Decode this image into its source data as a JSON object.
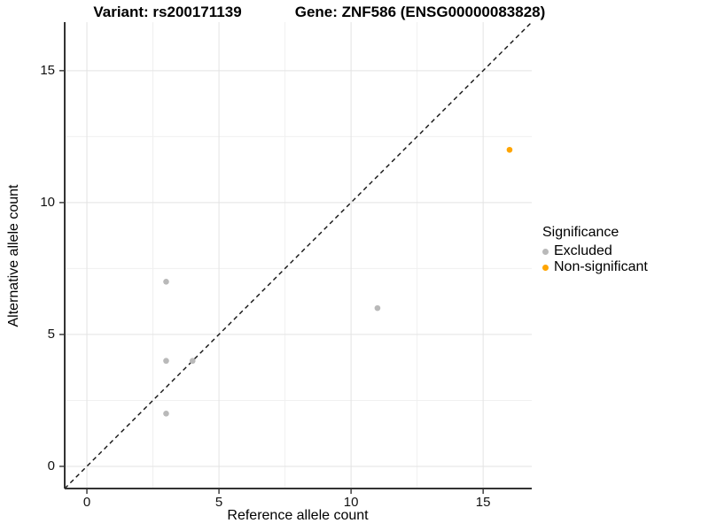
{
  "chart_data": {
    "type": "scatter",
    "title_left": "Variant: rs200171139",
    "title_right": "Gene: ZNF586 (ENSG00000083828)",
    "xlabel": "Reference allele count",
    "ylabel": "Alternative allele count",
    "xlim": [
      -0.84,
      16.84
    ],
    "ylim": [
      -0.84,
      16.84
    ],
    "x_ticks": [
      0,
      5,
      10,
      15
    ],
    "y_ticks": [
      0,
      5,
      10,
      15
    ],
    "x_minor_ticks": [
      2.5,
      7.5,
      12.5
    ],
    "y_minor_ticks": [
      2.5,
      7.5,
      12.5
    ],
    "grid": true,
    "identity_line": {
      "style": "dashed",
      "color": "#111111",
      "from": [
        -0.84,
        -0.84
      ],
      "to": [
        16.84,
        16.84
      ]
    },
    "series": [
      {
        "name": "Excluded",
        "color": "#b9b9b9",
        "points": [
          [
            3,
            7
          ],
          [
            3,
            4
          ],
          [
            3,
            2
          ],
          [
            4,
            4
          ],
          [
            11,
            6
          ]
        ]
      },
      {
        "name": "Non-significant",
        "color": "#FFA500",
        "points": [
          [
            16,
            12
          ]
        ]
      }
    ],
    "legend": {
      "title": "Significance",
      "position": "right",
      "entries": [
        {
          "label": "Excluded",
          "color": "#b9b9b9"
        },
        {
          "label": "Non-significant",
          "color": "#FFA500"
        }
      ]
    }
  },
  "style_colors": {
    "grid_major": "#e3e3e3",
    "grid_minor": "#f0f0f0",
    "axis_line": "#333333",
    "tick_mark": "#333333"
  }
}
